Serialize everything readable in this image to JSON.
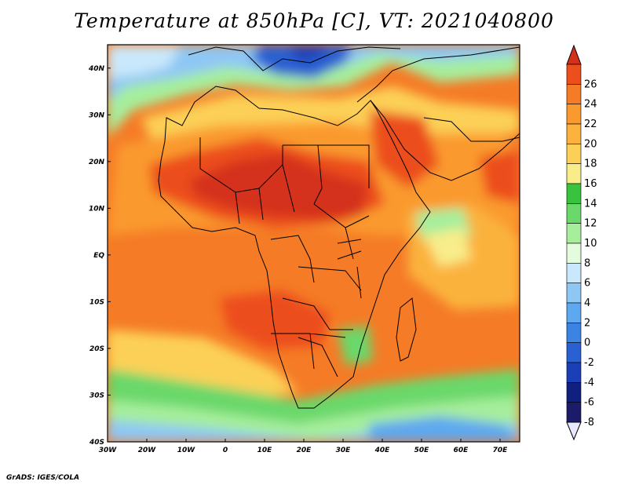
{
  "title": "Temperature at 850hPa [C], VT: 2021040800",
  "credit": "GrADS: IGES/COLA",
  "map": {
    "lon_range": [
      -30,
      75
    ],
    "lat_range": [
      -40,
      45
    ],
    "x_ticks": [
      {
        "lon": -30,
        "label": "30W"
      },
      {
        "lon": -20,
        "label": "20W"
      },
      {
        "lon": -10,
        "label": "10W"
      },
      {
        "lon": 0,
        "label": "0"
      },
      {
        "lon": 10,
        "label": "10E"
      },
      {
        "lon": 20,
        "label": "20E"
      },
      {
        "lon": 30,
        "label": "30E"
      },
      {
        "lon": 40,
        "label": "40E"
      },
      {
        "lon": 50,
        "label": "50E"
      },
      {
        "lon": 60,
        "label": "60E"
      },
      {
        "lon": 70,
        "label": "70E"
      }
    ],
    "y_ticks": [
      {
        "lat": 40,
        "label": "40N"
      },
      {
        "lat": 30,
        "label": "30N"
      },
      {
        "lat": 20,
        "label": "20N"
      },
      {
        "lat": 10,
        "label": "10N"
      },
      {
        "lat": 0,
        "label": "EQ"
      },
      {
        "lat": -10,
        "label": "10S"
      },
      {
        "lat": -20,
        "label": "20S"
      },
      {
        "lat": -30,
        "label": "30S"
      },
      {
        "lat": -40,
        "label": "40S"
      }
    ]
  },
  "colorbar": {
    "levels": [
      "26",
      "24",
      "22",
      "20",
      "18",
      "16",
      "14",
      "12",
      "10",
      "8",
      "6",
      "4",
      "2",
      "0",
      "-2",
      "-4",
      "-6",
      "-8"
    ],
    "colors": [
      "#d4301a",
      "#ec4e1c",
      "#f57b26",
      "#fa9a2e",
      "#fbb23e",
      "#fcd057",
      "#f8ed8a",
      "#39c23d",
      "#6bd86b",
      "#a6ee9c",
      "#e4fbdd",
      "#c9e8fb",
      "#8fc7f4",
      "#5ea8ef",
      "#3c84e4",
      "#2961d2",
      "#1a3fb7",
      "#10207f",
      "#1b1b6a",
      "#e7e7ff"
    ]
  }
}
